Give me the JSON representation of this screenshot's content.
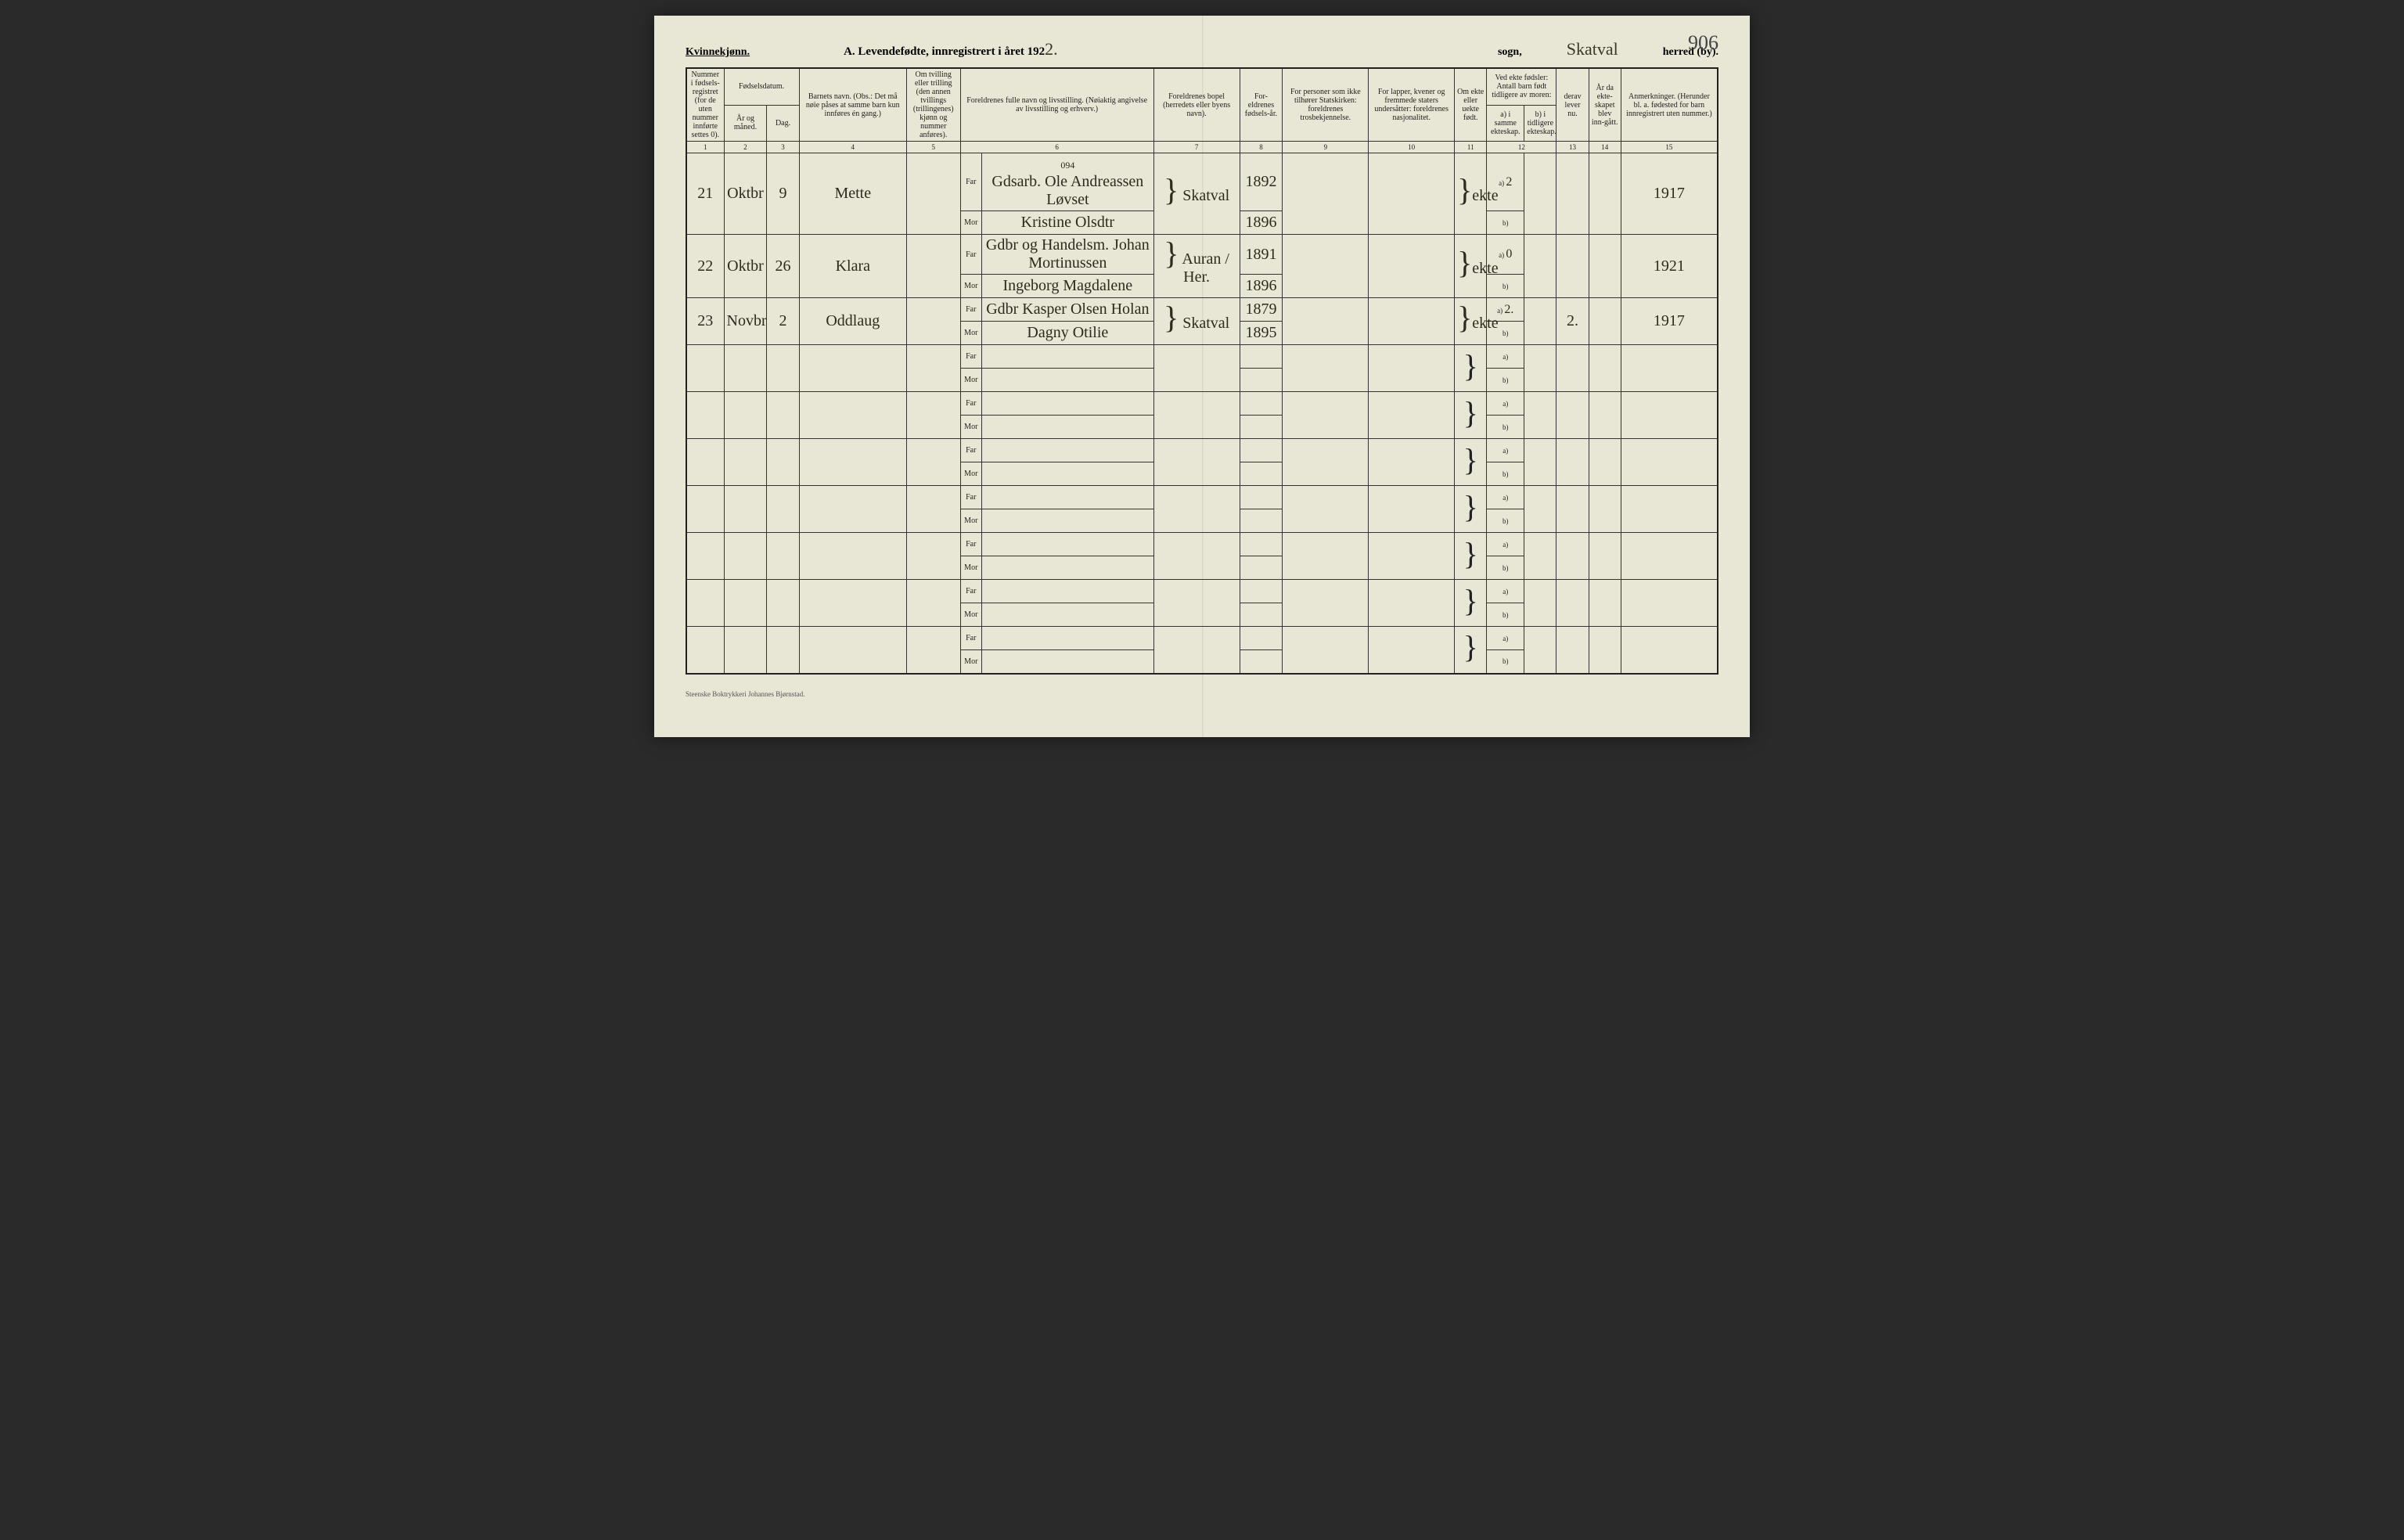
{
  "header": {
    "gender": "Kvinnekjønn.",
    "title_prefix": "A.  Levendefødte, innregistrert i året 192",
    "year_suffix": "2.",
    "sogn_label": "sogn,",
    "sogn_value": "Skatval",
    "herred_label": "herred (by).",
    "page_number": "906"
  },
  "columns": {
    "c1": "Nummer i fødsels-registret (for de uten nummer innførte settes 0).",
    "c2_group": "Fødselsdatum.",
    "c2": "År og måned.",
    "c3": "Dag.",
    "c4": "Barnets navn.\n(Obs.: Det må nøie påses at samme barn kun innføres én gang.)",
    "c5": "Om tvilling eller trilling (den annen tvillings (trillingenes) kjønn og nummer anføres).",
    "c6": "Foreldrenes fulle navn og livsstilling.\n(Nøiaktig angivelse av livsstilling og erhverv.)",
    "c7": "Foreldrenes bopel (herredets eller byens navn).",
    "c8": "For-eldrenes fødsels-år.",
    "c9": "For personer som ikke tilhører Statskirken: foreldrenes trosbekjennelse.",
    "c10": "For lapper, kvener og fremmede staters undersåtter: foreldrenes nasjonalitet.",
    "c11": "Om ekte eller uekte født.",
    "c12_group": "Ved ekte fødsler: Antall barn født tidligere av moren:",
    "c12a": "a) i samme ekteskap.",
    "c12b": "b) i tidligere ekteskap.",
    "c13": "derav lever nu.",
    "c14": "År da ekte-skapet blev inn-gått.",
    "c15": "Anmerkninger.\n(Herunder bl. a. fødested for barn innregistrert uten nummer.)"
  },
  "colnums": [
    "1",
    "2",
    "3",
    "4",
    "5",
    "6",
    "7",
    "8",
    "9",
    "10",
    "11",
    "12",
    "13",
    "14",
    "15"
  ],
  "far": "Far",
  "mor": "Mor",
  "ab_a": "a)",
  "ab_b": "b)",
  "entries": [
    {
      "num": "21",
      "month": "Oktbr",
      "day": "9",
      "name": "Mette",
      "far": "Gdsarb. Ole Andreassen Løvset",
      "far_extra": "094",
      "mor": "Kristine Olsdtr",
      "bopel": "Skatval",
      "far_year": "1892",
      "mor_year": "1896",
      "ekte": "ekte",
      "a": "2",
      "b": "",
      "lever": "",
      "marriage": "",
      "anm": "1917"
    },
    {
      "num": "22",
      "month": "Oktbr",
      "day": "26",
      "name": "Klara",
      "far": "Gdbr og Handelsm. Johan Mortinussen",
      "mor": "Ingeborg Magdalene",
      "bopel": "Auran / Her.",
      "far_year": "1891",
      "mor_year": "1896",
      "ekte": "ekte",
      "a": "0",
      "b": "",
      "lever": "",
      "marriage": "",
      "anm": "1921"
    },
    {
      "num": "23",
      "month": "Novbr",
      "day": "2",
      "name": "Oddlaug",
      "far": "Gdbr Kasper Olsen Holan",
      "mor": "Dagny Otilie",
      "bopel": "Skatval",
      "far_year": "1879",
      "mor_year": "1895",
      "ekte": "ekte",
      "a": "2.",
      "b": "",
      "lever": "2.",
      "marriage": "",
      "anm": "1917"
    }
  ],
  "blank_rows": 7,
  "printer": "Steenske Boktrykkeri Johannes Bjørnstad."
}
